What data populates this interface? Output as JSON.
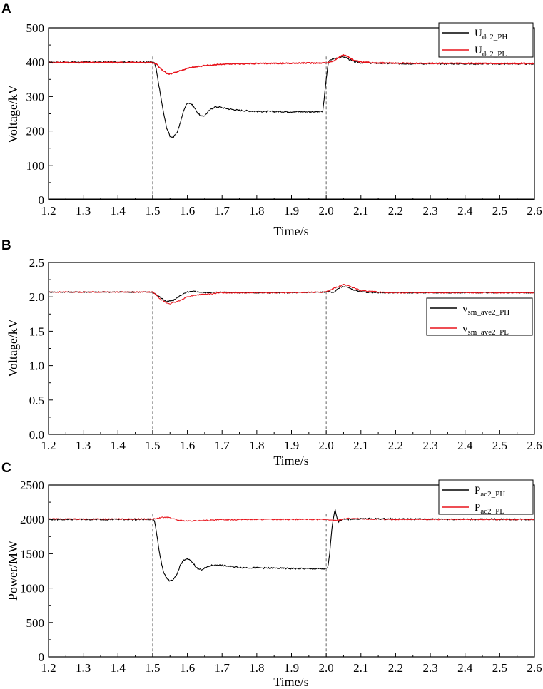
{
  "chart_data": [
    {
      "panel": "A",
      "type": "line",
      "xlabel": "Time/s",
      "ylabel": "Voltage/kV",
      "xlim": [
        1.2,
        2.6
      ],
      "ylim": [
        0,
        500
      ],
      "xticks": [
        "1.2",
        "1.3",
        "1.4",
        "1.5",
        "1.6",
        "1.7",
        "1.8",
        "1.9",
        "2.0",
        "2.1",
        "2.2",
        "2.3",
        "2.4",
        "2.5",
        "2.6"
      ],
      "yticks": [
        "0",
        "100",
        "200",
        "300",
        "400",
        "500"
      ],
      "legend_position": "top-right",
      "markers": [
        1.5,
        2.0
      ],
      "series": [
        {
          "name_main": "U",
          "name_sub": "dc2_PH",
          "color": "#000000",
          "x": [
            1.2,
            1.5,
            1.505,
            1.51,
            1.52,
            1.53,
            1.54,
            1.55,
            1.56,
            1.57,
            1.58,
            1.59,
            1.6,
            1.61,
            1.62,
            1.63,
            1.64,
            1.65,
            1.66,
            1.67,
            1.68,
            1.69,
            1.7,
            1.72,
            1.75,
            1.8,
            1.9,
            1.99,
            2.005,
            2.01,
            2.02,
            2.03,
            2.04,
            2.05,
            2.06,
            2.07,
            2.08,
            2.1,
            2.15,
            2.2,
            2.6
          ],
          "y": [
            400,
            400,
            398,
            380,
            320,
            260,
            210,
            185,
            182,
            195,
            225,
            262,
            282,
            280,
            268,
            252,
            242,
            245,
            256,
            265,
            270,
            270,
            268,
            264,
            260,
            257,
            256,
            256,
            395,
            405,
            410,
            412,
            414,
            416,
            412,
            406,
            401,
            398,
            397,
            396,
            395
          ]
        },
        {
          "name_main": "U",
          "name_sub": "dc2_PL",
          "color": "#e8141c",
          "x": [
            1.2,
            1.5,
            1.51,
            1.52,
            1.53,
            1.54,
            1.55,
            1.56,
            1.58,
            1.6,
            1.62,
            1.65,
            1.7,
            1.8,
            1.9,
            2.0,
            2.01,
            2.02,
            2.03,
            2.04,
            2.05,
            2.06,
            2.07,
            2.08,
            2.1,
            2.15,
            2.2,
            2.6
          ],
          "y": [
            399,
            399,
            395,
            385,
            375,
            368,
            366,
            368,
            375,
            382,
            386,
            390,
            394,
            396,
            397,
            398,
            400,
            403,
            410,
            416,
            420,
            418,
            412,
            405,
            400,
            398,
            397,
            396
          ]
        },
        {
          "name_main": "",
          "name_sub": "",
          "color": "#000000",
          "x": [
            1.2,
            2.6
          ],
          "y": [
            2,
            2
          ]
        }
      ]
    },
    {
      "panel": "B",
      "type": "line",
      "xlabel": "Time/s",
      "ylabel": "Voltage/kV",
      "xlim": [
        1.2,
        2.6
      ],
      "ylim": [
        0.0,
        2.5
      ],
      "xticks": [
        "1.2",
        "1.3",
        "1.4",
        "1.5",
        "1.6",
        "1.7",
        "1.8",
        "1.9",
        "2.0",
        "2.1",
        "2.2",
        "2.3",
        "2.4",
        "2.5",
        "2.6"
      ],
      "yticks": [
        "0.0",
        "0.5",
        "1.0",
        "1.5",
        "2.0",
        "2.5"
      ],
      "legend_position": "right",
      "markers": [
        1.5,
        2.0
      ],
      "series": [
        {
          "name_main": "v",
          "name_sub": "sm_ave2_PH",
          "color": "#000000",
          "x": [
            1.2,
            1.5,
            1.52,
            1.54,
            1.56,
            1.58,
            1.6,
            1.62,
            1.65,
            1.7,
            1.75,
            1.8,
            1.9,
            2.0,
            2.01,
            2.02,
            2.03,
            2.04,
            2.05,
            2.06,
            2.08,
            2.1,
            2.15,
            2.2,
            2.3,
            2.6
          ],
          "y": [
            2.07,
            2.07,
            2.0,
            1.93,
            1.95,
            2.02,
            2.07,
            2.08,
            2.06,
            2.07,
            2.06,
            2.06,
            2.06,
            2.07,
            2.08,
            2.06,
            2.1,
            2.14,
            2.15,
            2.14,
            2.1,
            2.07,
            2.06,
            2.06,
            2.06,
            2.06
          ]
        },
        {
          "name_main": "v",
          "name_sub": "sm_ave2_PL",
          "color": "#e8141c",
          "x": [
            1.2,
            1.5,
            1.52,
            1.54,
            1.55,
            1.57,
            1.6,
            1.63,
            1.66,
            1.7,
            1.75,
            1.8,
            1.9,
            2.0,
            2.02,
            2.04,
            2.05,
            2.06,
            2.08,
            2.1,
            2.15,
            2.2,
            2.3,
            2.6
          ],
          "y": [
            2.07,
            2.07,
            1.98,
            1.91,
            1.9,
            1.93,
            2.0,
            2.03,
            2.04,
            2.06,
            2.06,
            2.06,
            2.06,
            2.07,
            2.12,
            2.16,
            2.18,
            2.17,
            2.13,
            2.09,
            2.07,
            2.06,
            2.06,
            2.06
          ]
        }
      ]
    },
    {
      "panel": "C",
      "type": "line",
      "xlabel": "Time/s",
      "ylabel": "Power/MW",
      "xlim": [
        1.2,
        2.6
      ],
      "ylim": [
        0,
        2500
      ],
      "xticks": [
        "1.2",
        "1.3",
        "1.4",
        "1.5",
        "1.6",
        "1.7",
        "1.8",
        "1.9",
        "2.0",
        "2.1",
        "2.2",
        "2.3",
        "2.4",
        "2.5",
        "2.6"
      ],
      "yticks": [
        "0",
        "500",
        "1000",
        "1500",
        "2000",
        "2500"
      ],
      "legend_position": "top-right",
      "markers": [
        1.5,
        2.0
      ],
      "series": [
        {
          "name_main": "P",
          "name_sub": "ac2_PH",
          "color": "#000000",
          "x": [
            1.2,
            1.5,
            1.505,
            1.51,
            1.52,
            1.53,
            1.54,
            1.55,
            1.56,
            1.57,
            1.58,
            1.59,
            1.6,
            1.61,
            1.62,
            1.63,
            1.64,
            1.65,
            1.67,
            1.69,
            1.7,
            1.75,
            1.8,
            1.9,
            2.0,
            2.005,
            2.01,
            2.015,
            2.02,
            2.025,
            2.03,
            2.035,
            2.04,
            2.05,
            2.1,
            2.2,
            2.6
          ],
          "y": [
            2000,
            2000,
            1990,
            1850,
            1500,
            1250,
            1150,
            1100,
            1120,
            1200,
            1340,
            1410,
            1420,
            1400,
            1340,
            1280,
            1270,
            1290,
            1330,
            1340,
            1330,
            1300,
            1295,
            1285,
            1280,
            1300,
            1500,
            1800,
            2000,
            2150,
            2050,
            1960,
            1990,
            2000,
            2010,
            2005,
            2000
          ]
        },
        {
          "name_main": "P",
          "name_sub": "ac2_PL",
          "color": "#e8141c",
          "x": [
            1.2,
            1.5,
            1.51,
            1.53,
            1.55,
            1.57,
            1.6,
            1.65,
            1.7,
            1.8,
            1.9,
            2.0,
            2.02,
            2.04,
            2.06,
            2.08,
            2.1,
            2.2,
            2.6
          ],
          "y": [
            2005,
            2005,
            2010,
            2030,
            2025,
            1990,
            1975,
            1985,
            1995,
            2000,
            2000,
            2000,
            1985,
            1995,
            2015,
            2010,
            2005,
            2000,
            2000
          ]
        }
      ]
    }
  ]
}
